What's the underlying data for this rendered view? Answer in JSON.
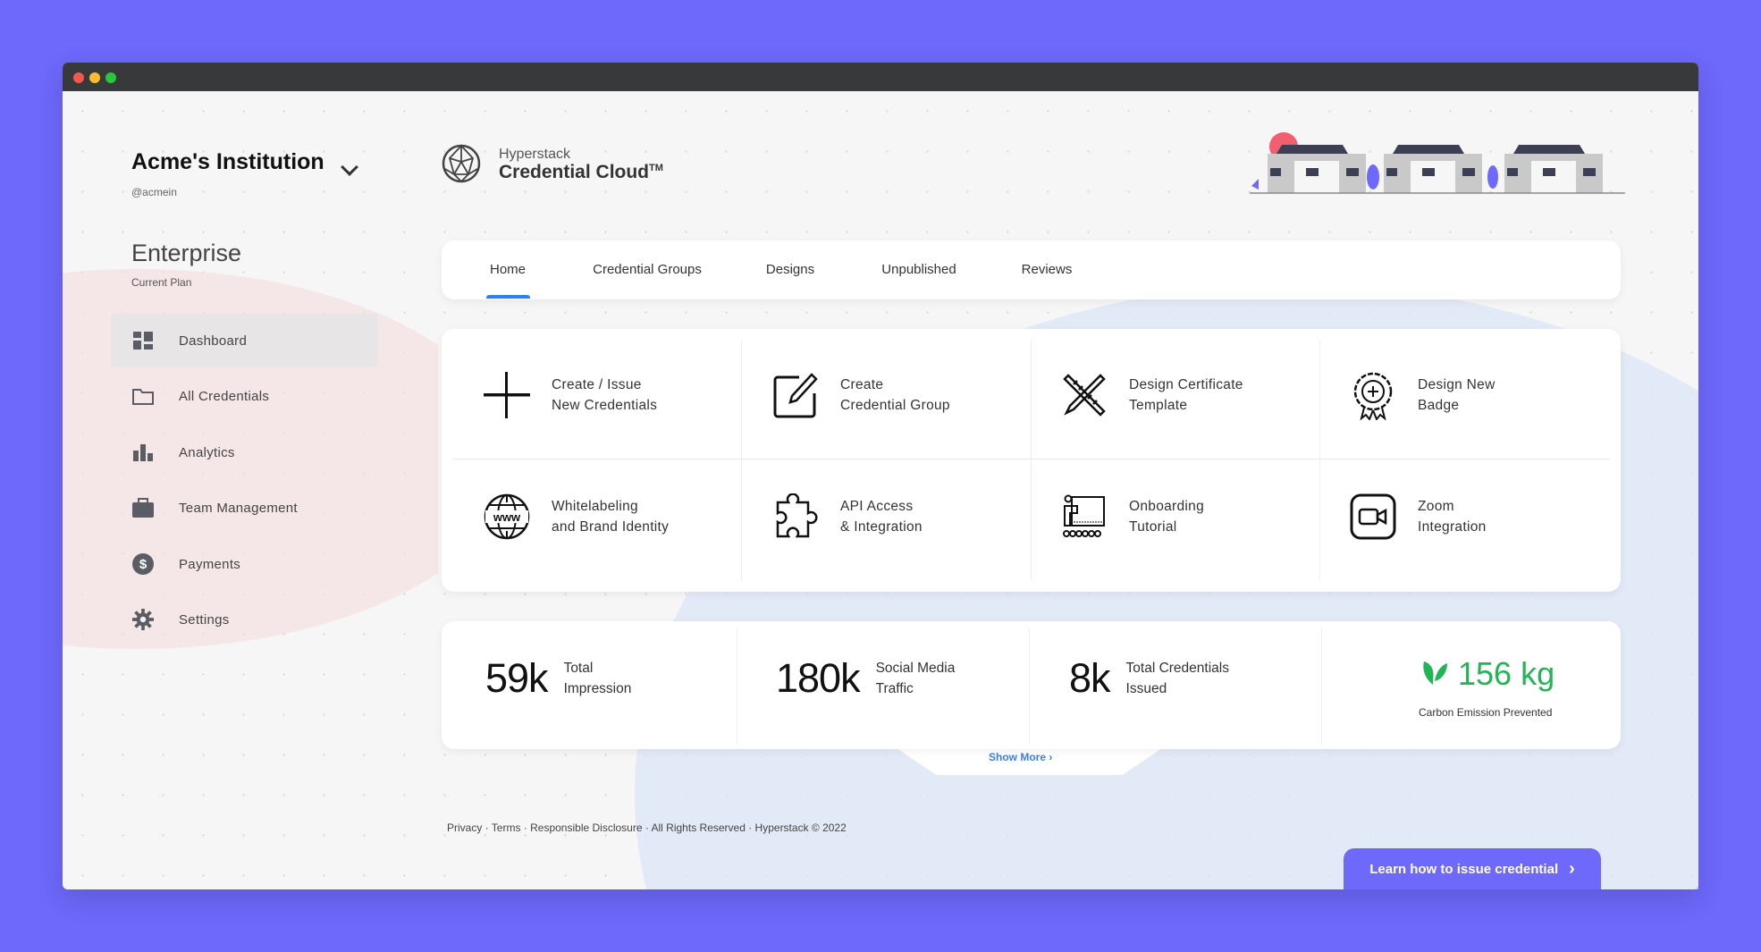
{
  "window": {
    "controls": [
      "close",
      "minimize",
      "maximize"
    ]
  },
  "institution": {
    "name": "Acme's Institution",
    "handle": "@acmein"
  },
  "plan": {
    "name": "Enterprise",
    "label": "Current Plan"
  },
  "sidebar": {
    "items": [
      {
        "label": "Dashboard",
        "icon": "dashboard-icon",
        "active": true
      },
      {
        "label": "All Credentials",
        "icon": "folder-icon"
      },
      {
        "label": "Analytics",
        "icon": "bar-chart-icon"
      },
      {
        "label": "Team Management",
        "icon": "briefcase-icon"
      },
      {
        "label": "Payments",
        "icon": "dollar-icon"
      },
      {
        "label": "Settings",
        "icon": "gear-icon"
      }
    ]
  },
  "brand": {
    "company": "Hyperstack",
    "product": "Credential Cloud",
    "tm": "TM"
  },
  "tabs": [
    "Home",
    "Credential Groups",
    "Designs",
    "Unpublished",
    "Reviews"
  ],
  "actions": [
    {
      "line1": "Create / Issue",
      "line2": "New Credentials",
      "icon": "plus-icon"
    },
    {
      "line1": "Create",
      "line2": "Credential Group",
      "icon": "edit-icon"
    },
    {
      "line1": "Design Certificate",
      "line2": "Template",
      "icon": "design-tools-icon"
    },
    {
      "line1": "Design New",
      "line2": "Badge",
      "icon": "badge-icon"
    },
    {
      "line1": "Whitelabeling",
      "line2": "and Brand Identity",
      "icon": "globe-www-icon"
    },
    {
      "line1": "API Access",
      "line2": "& Integration",
      "icon": "puzzle-icon"
    },
    {
      "line1": "Onboarding",
      "line2": "Tutorial",
      "icon": "presentation-icon"
    },
    {
      "line1": "Zoom",
      "line2": "Integration",
      "icon": "video-camera-icon"
    }
  ],
  "stats": [
    {
      "value": "59k",
      "line1": "Total",
      "line2": "Impression"
    },
    {
      "value": "180k",
      "line1": "Social Media",
      "line2": "Traffic"
    },
    {
      "value": "8k",
      "line1": "Total Credentials",
      "line2": "Issued"
    }
  ],
  "carbon": {
    "value": "156 kg",
    "label": "Carbon Emission Prevented",
    "color": "#22b455"
  },
  "show_more": "Show More",
  "footer": "Privacy · Terms · Responsible Disclosure · All Rights Reserved · Hyperstack © 2022",
  "cta": "Learn how to issue credential",
  "colors": {
    "background": "#6e68fb",
    "accent": "#2e7ff0",
    "cta": "#6e68fb"
  }
}
